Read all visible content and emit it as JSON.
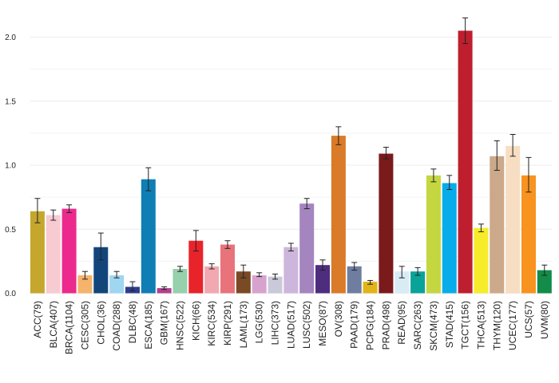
{
  "chart_data": {
    "type": "bar",
    "title": "",
    "xlabel": "",
    "ylabel": "",
    "ylim": [
      0,
      2.2
    ],
    "grid": true,
    "yticks": [
      "0.0",
      "0.5",
      "1.0",
      "1.5",
      "2.0"
    ],
    "categories": [
      "ACC(79)",
      "BLCA(407)",
      "BRCA(1104)",
      "CESC(305)",
      "CHOL(36)",
      "COAD(288)",
      "DLBC(48)",
      "ESCA(185)",
      "GBM(167)",
      "HNSC(522)",
      "KICH(66)",
      "KIRC(534)",
      "KIRP(291)",
      "LAML(173)",
      "LGG(530)",
      "LIHC(373)",
      "LUAD(517)",
      "LUSC(502)",
      "MESO(87)",
      "OV(308)",
      "PAAD(179)",
      "PCPG(184)",
      "PRAD(498)",
      "READ(95)",
      "SARC(263)",
      "SKCM(473)",
      "STAD(415)",
      "TGCT(156)",
      "THCA(513)",
      "THYM(120)",
      "UCEC(177)",
      "UCS(57)",
      "UVM(80)"
    ],
    "values": [
      0.64,
      0.61,
      0.66,
      0.14,
      0.36,
      0.14,
      0.05,
      0.89,
      0.04,
      0.19,
      0.41,
      0.21,
      0.38,
      0.17,
      0.14,
      0.13,
      0.36,
      0.7,
      0.22,
      1.23,
      0.21,
      0.09,
      1.09,
      0.17,
      0.17,
      0.92,
      0.86,
      2.05,
      0.51,
      1.07,
      1.15,
      0.92,
      0.18
    ],
    "err_low": [
      0.55,
      0.57,
      0.63,
      0.11,
      0.26,
      0.12,
      0.02,
      0.8,
      0.03,
      0.17,
      0.33,
      0.19,
      0.35,
      0.12,
      0.13,
      0.11,
      0.33,
      0.66,
      0.18,
      1.16,
      0.18,
      0.07,
      1.05,
      0.12,
      0.14,
      0.87,
      0.81,
      1.95,
      0.48,
      0.96,
      1.07,
      0.79,
      0.14
    ],
    "err_high": [
      0.74,
      0.65,
      0.69,
      0.17,
      0.47,
      0.17,
      0.09,
      0.98,
      0.05,
      0.21,
      0.49,
      0.23,
      0.41,
      0.22,
      0.16,
      0.15,
      0.39,
      0.74,
      0.26,
      1.3,
      0.24,
      0.1,
      1.14,
      0.21,
      0.2,
      0.97,
      0.92,
      2.15,
      0.54,
      1.19,
      1.24,
      1.06,
      0.22
    ],
    "colors": [
      "#C5A72E",
      "#F8CAD2",
      "#EC2A8E",
      "#F5B36B",
      "#12467B",
      "#9FD6F0",
      "#2E3D8E",
      "#0F7EB4",
      "#B0418F",
      "#96D0AC",
      "#E8232A",
      "#F2A8B0",
      "#E9737B",
      "#7A4A24",
      "#D8A2CF",
      "#C9C9D9",
      "#CDB6DB",
      "#A485C0",
      "#4E2D7F",
      "#D97B28",
      "#6F7EA0",
      "#E2B419",
      "#7B1A1B",
      "#D9ECF5",
      "#0AA39A",
      "#C4D740",
      "#08ACE8",
      "#BE1E2D",
      "#F6EC2A",
      "#CCA98A",
      "#F7DEC2",
      "#F7931E",
      "#128C48"
    ]
  }
}
